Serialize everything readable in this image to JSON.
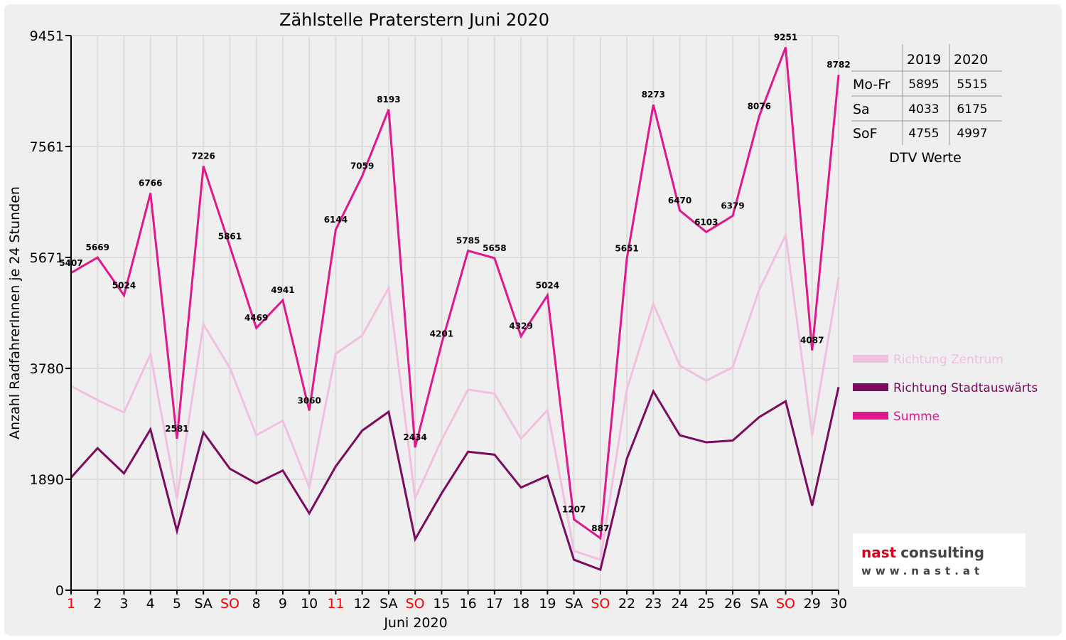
{
  "chart_data": {
    "type": "line",
    "title": "Zählstelle Praterstern Juni 2020",
    "xlabel": "Juni 2020",
    "ylabel": "Anzahl RadfahrerInnen je 24 Stunden",
    "ylim": [
      0,
      9451
    ],
    "yticks": [
      0,
      1890,
      3780,
      5671,
      7561,
      9451
    ],
    "grid": true,
    "legend_position": "right",
    "categories": [
      "1",
      "2",
      "3",
      "4",
      "5",
      "SA",
      "SO",
      "8",
      "9",
      "10",
      "11",
      "12",
      "SA",
      "SO",
      "15",
      "16",
      "17",
      "18",
      "19",
      "SA",
      "SO",
      "22",
      "23",
      "24",
      "25",
      "26",
      "SA",
      "SO",
      "29",
      "30"
    ],
    "red_categories": [
      0,
      6,
      10,
      13,
      20,
      27
    ],
    "series": [
      {
        "name": "Richtung Zentrum",
        "color": "#f0c0e0",
        "values": [
          3480,
          3240,
          3030,
          4020,
          1560,
          4530,
          3790,
          2640,
          2890,
          1750,
          4030,
          4340,
          5150,
          1570,
          2560,
          3420,
          3350,
          2580,
          3070,
          670,
          520,
          3420,
          4880,
          3830,
          3570,
          3800,
          5120,
          6050,
          2640,
          5330
        ]
      },
      {
        "name": "Richtung Stadtauswärts",
        "color": "#7a0b5e",
        "values": [
          1920,
          2420,
          1990,
          2740,
          1010,
          2690,
          2070,
          1820,
          2040,
          1310,
          2110,
          2720,
          3040,
          870,
          1650,
          2360,
          2310,
          1750,
          1950,
          520,
          350,
          2240,
          3390,
          2640,
          2520,
          2550,
          2950,
          3220,
          1440,
          3460
        ]
      },
      {
        "name": "Summe",
        "color": "#e0188e",
        "values": [
          5407,
          5669,
          5024,
          6766,
          2581,
          7226,
          5861,
          4469,
          4941,
          3060,
          6144,
          7059,
          8193,
          2434,
          4201,
          5785,
          5658,
          4329,
          5024,
          1207,
          887,
          5651,
          8273,
          6470,
          6103,
          6379,
          8076,
          9251,
          4087,
          8782
        ]
      }
    ]
  },
  "dtv_table": {
    "headers": [
      "",
      "2019",
      "2020"
    ],
    "rows": [
      {
        "label": "Mo-Fr",
        "v2019": "5895",
        "v2020": "5515"
      },
      {
        "label": "Sa",
        "v2019": "4033",
        "v2020": "6175"
      },
      {
        "label": "SoF",
        "v2019": "4755",
        "v2020": "4997"
      }
    ],
    "caption": "DTV Werte"
  },
  "logo": {
    "name_part1": "nast",
    "name_part2": "consulting",
    "url": "www.nast.at"
  },
  "colors": {
    "red_label": "#ff0000",
    "axis": "#000000",
    "accent_logo": "#d8001c"
  }
}
